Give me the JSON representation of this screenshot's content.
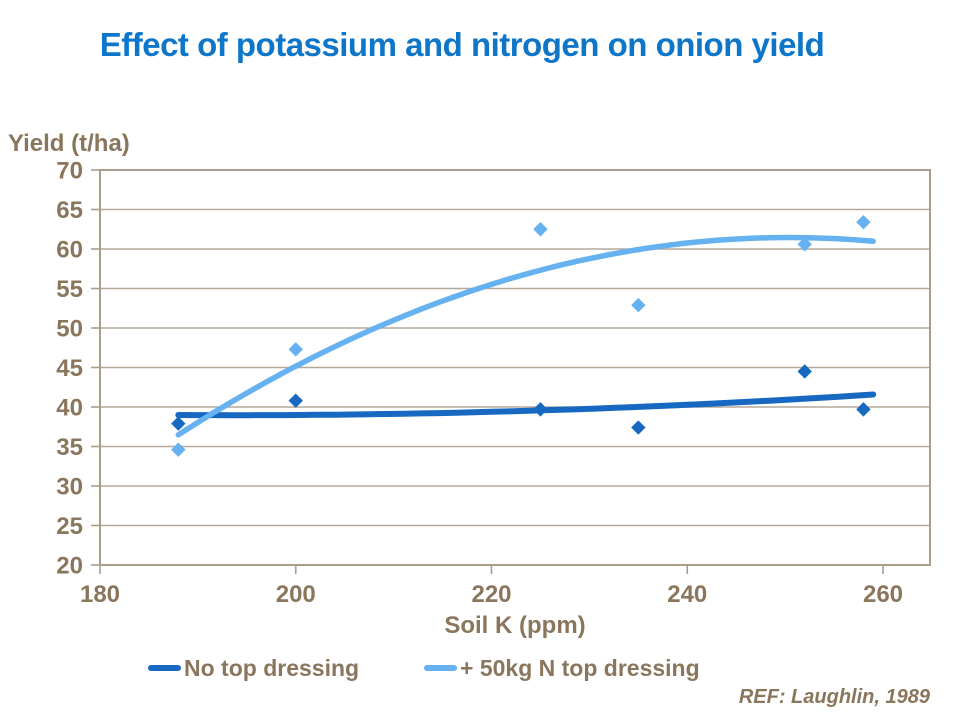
{
  "title": "Effect of potassium and nitrogen on onion yield",
  "footer": {
    "ref": "REF: Laughlin, 1989"
  },
  "colors": {
    "title": "#0E76C9",
    "text_brown": "#8A765C",
    "axis": "#A99D8C",
    "gridline": "#B3A899",
    "series_dark": "#1668C0",
    "series_light": "#66B1F0",
    "background": "#FFFFFF"
  },
  "chart_data": {
    "type": "scatter",
    "title": "Effect of potassium and nitrogen on onion yield",
    "xlabel": "Soil K (ppm)",
    "ylabel": "Yield (t/ha)",
    "xlim": [
      180,
      264.8
    ],
    "ylim": [
      20,
      70
    ],
    "x_ticks": [
      180,
      200,
      220,
      240,
      260
    ],
    "y_ticks": [
      20,
      25,
      30,
      35,
      40,
      45,
      50,
      55,
      60,
      65,
      70
    ],
    "grid": "horizontal",
    "legend_position": "bottom",
    "series": [
      {
        "name": "No top dressing",
        "color": "#1668C0",
        "marker": "diamond",
        "points": [
          [
            188,
            37.9
          ],
          [
            200,
            40.8
          ],
          [
            225,
            39.7
          ],
          [
            235,
            37.4
          ],
          [
            252,
            44.5
          ],
          [
            258,
            39.7
          ]
        ],
        "trend": {
          "kind": "poly2",
          "center": 220,
          "coeffs": [
            39.39,
            0.0323,
            0.000615
          ],
          "domain": [
            188,
            259
          ]
        }
      },
      {
        "name": "+ 50kg N top dressing",
        "color": "#66B1F0",
        "marker": "diamond",
        "points": [
          [
            188,
            34.6
          ],
          [
            200,
            47.3
          ],
          [
            225,
            62.5
          ],
          [
            235,
            52.9
          ],
          [
            252,
            60.6
          ],
          [
            258,
            63.4
          ]
        ],
        "trend": {
          "kind": "poly2",
          "center": 220,
          "coeffs": [
            55.53,
            0.39,
            -0.00642
          ],
          "domain": [
            188,
            259
          ]
        }
      }
    ]
  }
}
